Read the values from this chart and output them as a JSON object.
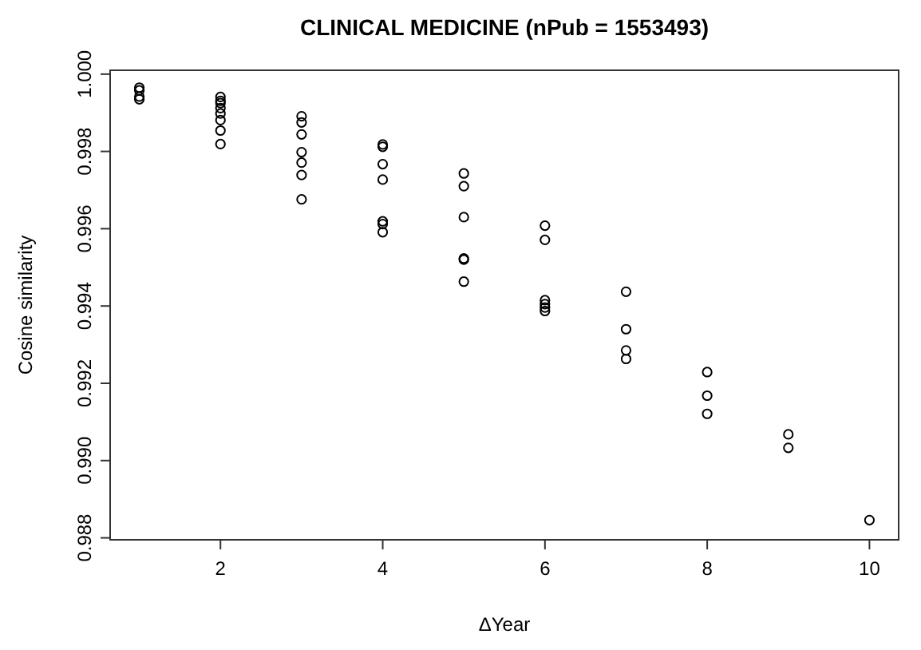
{
  "chart_data": {
    "type": "scatter",
    "title": "CLINICAL MEDICINE (nPub = 1553493)",
    "xlabel": "ΔYear",
    "ylabel": "Cosine similarity",
    "marker": "circle",
    "grid": false,
    "x": [
      1,
      1,
      1,
      1,
      2,
      2,
      2,
      2,
      2,
      2,
      2,
      2,
      3,
      3,
      3,
      3,
      3,
      3,
      3,
      4,
      4,
      4,
      4,
      4,
      4,
      4,
      5,
      5,
      5,
      5,
      5,
      5,
      6,
      6,
      6,
      6,
      6,
      6,
      7,
      7,
      7,
      7,
      8,
      8,
      8,
      9,
      9,
      10
    ],
    "series": [
      {
        "color": "#000000",
        "values": [
          0.99965,
          0.99958,
          0.99942,
          0.99935,
          0.99941,
          0.99931,
          0.99925,
          0.99912,
          0.99898,
          0.99881,
          0.99854,
          0.99819,
          0.99891,
          0.99875,
          0.99844,
          0.99798,
          0.99771,
          0.99739,
          0.99676,
          0.99818,
          0.99812,
          0.99767,
          0.99727,
          0.99619,
          0.99612,
          0.99591,
          0.99743,
          0.9971,
          0.9963,
          0.99523,
          0.9952,
          0.99463,
          0.99608,
          0.99571,
          0.99415,
          0.99405,
          0.99396,
          0.99387,
          0.99437,
          0.9934,
          0.99285,
          0.99263,
          0.99229,
          0.99168,
          0.99121,
          0.99068,
          0.99033,
          0.98846
        ]
      }
    ],
    "xlim": [
      0.64,
      10.36
    ],
    "ylim": [
      0.98795,
      1.0001
    ],
    "xticks": [
      2,
      4,
      6,
      8,
      10
    ],
    "yticks": [
      {
        "value": 0.988,
        "label": "0.988"
      },
      {
        "value": 0.99,
        "label": "0.990"
      },
      {
        "value": 0.992,
        "label": "0.992"
      },
      {
        "value": 0.994,
        "label": "0.994"
      },
      {
        "value": 0.996,
        "label": "0.996"
      },
      {
        "value": 0.998,
        "label": "0.998"
      },
      {
        "value": 1,
        "label": "1.000"
      }
    ]
  }
}
